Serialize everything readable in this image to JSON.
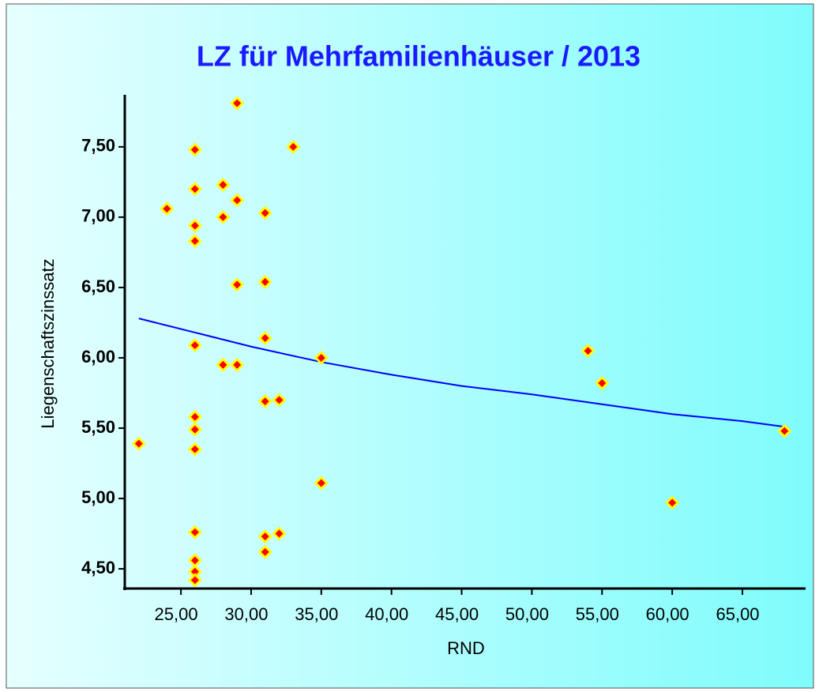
{
  "chart_data": {
    "type": "scatter",
    "title": "LZ für Mehrfamilienhäuser / 2013",
    "x_label": "RND",
    "y_label": "Liegenschaftszinssatz",
    "xlim": [
      21,
      69.5
    ],
    "ylim": [
      4.36,
      7.87
    ],
    "xticks": [
      {
        "value": 25,
        "label": "25,00"
      },
      {
        "value": 30,
        "label": "30,00"
      },
      {
        "value": 35,
        "label": "35,00"
      },
      {
        "value": 40,
        "label": "40,00"
      },
      {
        "value": 45,
        "label": "45,00"
      },
      {
        "value": 50,
        "label": "50,00"
      },
      {
        "value": 55,
        "label": "55,00"
      },
      {
        "value": 60,
        "label": "60,00"
      },
      {
        "value": 65,
        "label": "65,00"
      }
    ],
    "yticks": [
      {
        "value": 4.5,
        "label": "4,50"
      },
      {
        "value": 5,
        "label": "5,00"
      },
      {
        "value": 5.5,
        "label": "5,50"
      },
      {
        "value": 6,
        "label": "6,00"
      },
      {
        "value": 6.5,
        "label": "6,50"
      },
      {
        "value": 7,
        "label": "7,00"
      },
      {
        "value": 7.5,
        "label": "7,50"
      }
    ],
    "series": [
      {
        "color": "#ff0000",
        "edge_color": "#ffff00",
        "x": [
          22,
          24,
          26,
          26,
          26,
          26,
          26,
          26,
          26,
          26,
          26,
          26,
          26,
          26,
          28,
          28,
          28,
          29,
          29,
          29,
          29,
          31,
          31,
          31,
          31,
          31,
          31,
          32,
          32,
          33,
          35,
          35,
          54,
          55,
          60,
          68
        ],
        "values": [
          5.39,
          7.06,
          7.48,
          7.2,
          6.94,
          6.83,
          6.09,
          5.58,
          5.49,
          5.35,
          4.76,
          4.56,
          4.48,
          4.42,
          7.23,
          7.0,
          5.95,
          7.81,
          7.12,
          6.52,
          5.95,
          7.03,
          6.54,
          6.14,
          5.69,
          4.73,
          4.62,
          5.7,
          4.75,
          7.5,
          6.0,
          5.11,
          6.05,
          5.82,
          4.97,
          5.48
        ]
      }
    ],
    "trendline": {
      "color": "#0000ff",
      "x": [
        22,
        26,
        30,
        35,
        40,
        45,
        50,
        55,
        60,
        65,
        68
      ],
      "values": [
        6.28,
        6.18,
        6.08,
        5.97,
        5.88,
        5.8,
        5.74,
        5.67,
        5.6,
        5.55,
        5.51
      ]
    }
  }
}
